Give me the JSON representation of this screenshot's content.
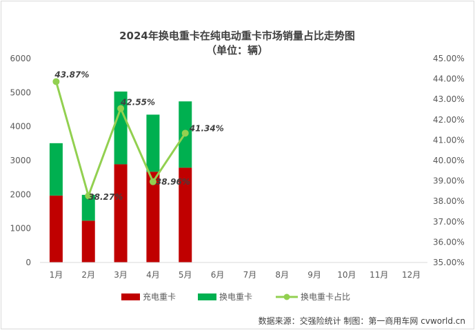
{
  "chart_data": {
    "type": "bar",
    "title": "2024年换电重卡在纯电动重卡市场销量占比走势图",
    "subtitle": "（单位：辆）",
    "categories": [
      "1月",
      "2月",
      "3月",
      "4月",
      "5月",
      "6月",
      "7月",
      "8月",
      "9月",
      "10月",
      "11月",
      "12月"
    ],
    "stacked": true,
    "series": [
      {
        "name": "充电重卡",
        "type": "bar",
        "axis": "left",
        "color": "#c00000",
        "values": [
          1970,
          1230,
          2890,
          2670,
          2790,
          null,
          null,
          null,
          null,
          null,
          null,
          null
        ]
      },
      {
        "name": "换电重卡",
        "type": "bar",
        "axis": "left",
        "color": "#00b050",
        "values": [
          1540,
          760,
          2140,
          1680,
          1950,
          null,
          null,
          null,
          null,
          null,
          null,
          null
        ]
      },
      {
        "name": "换电重卡占比",
        "type": "line",
        "axis": "right",
        "color": "#92d050",
        "values": [
          43.87,
          38.27,
          42.55,
          38.96,
          41.34,
          null,
          null,
          null,
          null,
          null,
          null,
          null
        ],
        "labels": [
          "43.87%",
          "38.27%",
          "42.55%",
          "38.96%",
          "41.34%"
        ]
      }
    ],
    "y_left": {
      "ylim": [
        0,
        6000
      ],
      "ticks": [
        "0",
        "1000",
        "2000",
        "3000",
        "4000",
        "5000",
        "6000"
      ]
    },
    "y_right": {
      "ylim": [
        35,
        45
      ],
      "ticks": [
        "35.00%",
        "36.00%",
        "37.00%",
        "38.00%",
        "39.00%",
        "40.00%",
        "41.00%",
        "42.00%",
        "43.00%",
        "44.00%",
        "45.00%"
      ]
    },
    "legend_position": "bottom",
    "grid": false
  },
  "footer": "数据来源：交强险统计  制图：第一商用车网 cvworld.cn"
}
